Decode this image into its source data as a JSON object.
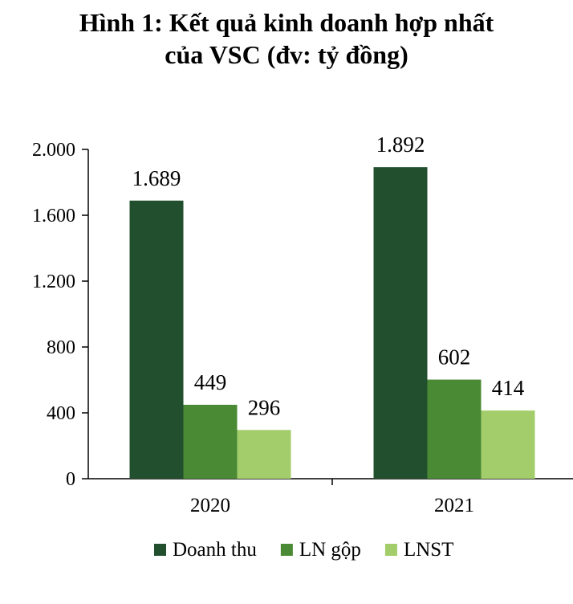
{
  "chart_data": {
    "type": "bar",
    "title_lines": [
      "Hình 1: Kết quả kinh doanh hợp nhất",
      "của VSC (đv: tỷ đồng)"
    ],
    "categories": [
      "2020",
      "2021"
    ],
    "series": [
      {
        "name": "Doanh thu",
        "values": [
          1689,
          1892
        ],
        "labels": [
          "1.689",
          "1.892"
        ],
        "color": "#22502f"
      },
      {
        "name": "LN gộp",
        "values": [
          449,
          602
        ],
        "labels": [
          "449",
          "602"
        ],
        "color": "#4b8a35"
      },
      {
        "name": "LNST",
        "values": [
          296,
          414
        ],
        "labels": [
          "296",
          "414"
        ],
        "color": "#a3cd6a"
      }
    ],
    "yticks": [
      0,
      400,
      800,
      1200,
      1600,
      2000
    ],
    "ytick_labels": [
      "0",
      "400",
      "800",
      "1.200",
      "1.600",
      "2.000"
    ],
    "ylim": [
      0,
      2000
    ],
    "grid": false,
    "legend_position": "bottom"
  }
}
